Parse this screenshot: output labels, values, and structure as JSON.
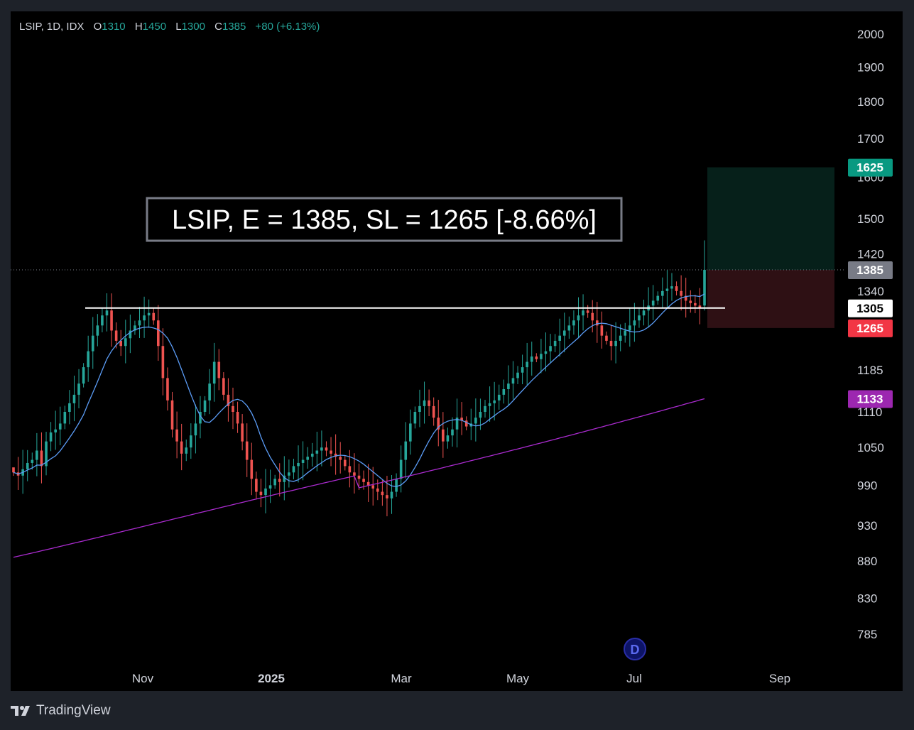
{
  "header": {
    "symbol": "LSIP, 1D, IDX",
    "o_label": "O",
    "o": "1310",
    "h_label": "H",
    "h": "1450",
    "l_label": "L",
    "l": "1300",
    "c_label": "C",
    "c": "1385",
    "change": "+80 (+6.13%)"
  },
  "footer": {
    "brand": "TradingView"
  },
  "colors": {
    "up": "#26a69a",
    "down": "#ef5350",
    "ma_fast": "#5b9cf6",
    "ma_slow": "#ab2bd0",
    "background": "#000000",
    "frame": "#1e2229",
    "target_zone": "#06201a",
    "stop_zone": "#2e1014"
  },
  "chart_data": {
    "type": "candlestick",
    "title": "LSIP, E = 1385, SL = 1265 [-8.66%]",
    "x_labels": [
      "Nov",
      "2025",
      "Mar",
      "May",
      "Jul",
      "Sep"
    ],
    "y_ticks": [
      2000,
      1900,
      1800,
      1700,
      1600,
      1500,
      1420,
      1340,
      1185,
      1110,
      1050,
      990,
      930,
      880,
      830,
      785
    ],
    "y_scale": "log",
    "ylim": [
      740,
      2100
    ],
    "last_candle": {
      "open": 1310,
      "high": 1450,
      "low": 1300,
      "close": 1385
    },
    "resistance_level": 1305,
    "price_tags": [
      {
        "label": "1625",
        "value": 1625,
        "color": "#089981",
        "text_color": "#ffffff"
      },
      {
        "label": "1385",
        "value": 1385,
        "color": "#787b86",
        "text_color": "#ffffff"
      },
      {
        "label": "1305",
        "value": 1305,
        "color": "#ffffff",
        "text_color": "#000000"
      },
      {
        "label": "1265",
        "value": 1265,
        "color": "#f23645",
        "text_color": "#ffffff"
      },
      {
        "label": "1133",
        "value": 1133,
        "color": "#9c27b0",
        "text_color": "#ffffff"
      }
    ],
    "position": {
      "entry": 1385,
      "stop_loss": 1265,
      "target": 1625
    },
    "marker": "D",
    "series_closes": [
      1010,
      1005,
      1015,
      1025,
      1030,
      1045,
      1020,
      1060,
      1075,
      1080,
      1090,
      1110,
      1125,
      1140,
      1160,
      1190,
      1220,
      1250,
      1270,
      1290,
      1300,
      1260,
      1240,
      1230,
      1245,
      1260,
      1270,
      1280,
      1290,
      1295,
      1280,
      1230,
      1170,
      1130,
      1080,
      1060,
      1040,
      1050,
      1070,
      1090,
      1110,
      1130,
      1160,
      1200,
      1170,
      1140,
      1120,
      1110,
      1090,
      1060,
      1030,
      1000,
      980,
      975,
      985,
      990,
      1000,
      995,
      1005,
      1010,
      1020,
      1025,
      1030,
      1035,
      1040,
      1045,
      1050,
      1045,
      1040,
      1035,
      1030,
      1020,
      1010,
      1005,
      1000,
      995,
      990,
      985,
      980,
      975,
      970,
      980,
      1000,
      1030,
      1060,
      1090,
      1110,
      1120,
      1130,
      1120,
      1100,
      1080,
      1060,
      1070,
      1080,
      1100,
      1095,
      1085,
      1090,
      1100,
      1110,
      1120,
      1125,
      1130,
      1140,
      1150,
      1160,
      1170,
      1180,
      1190,
      1200,
      1210,
      1205,
      1215,
      1220,
      1230,
      1240,
      1250,
      1260,
      1270,
      1280,
      1290,
      1300,
      1295,
      1280,
      1270,
      1250,
      1240,
      1230,
      1240,
      1250,
      1260,
      1270,
      1280,
      1290,
      1300,
      1310,
      1320,
      1330,
      1340,
      1345,
      1350,
      1340,
      1330,
      1320,
      1315,
      1310,
      1305,
      1385
    ]
  }
}
